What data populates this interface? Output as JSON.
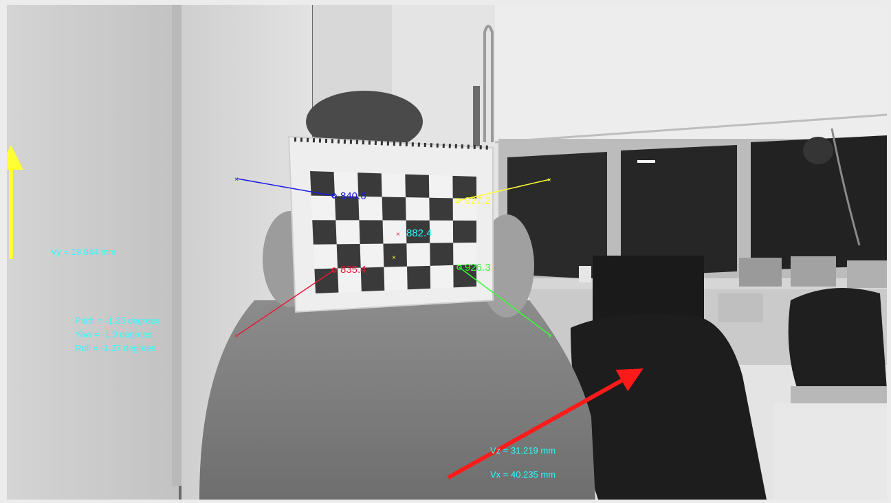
{
  "overlay": {
    "vy_label": "Vy = 19.944 mm",
    "pitch_label": "Pitch = -1.35 degrees",
    "yaw_label": "Yaw = -1.9 degrees",
    "roll_label": "Roll = -1.37 degrees",
    "vz_label": "Vz = 31.219 mm",
    "vx_label": "Vx = 40.235 mm",
    "corner_top_left": "840.6",
    "corner_top_right": "927.2",
    "corner_center": "882.4",
    "corner_bottom_left": "835.4",
    "corner_bottom_right": "926.3"
  },
  "colors": {
    "label_cyan": "#2bfcff",
    "vy_arrow": "#ffff33",
    "vx_arrow": "#ff1a1a",
    "top_left": "#1a1ae6",
    "top_right": "#ffff33",
    "bottom_left": "#e61a33",
    "bottom_right": "#33ff33"
  }
}
